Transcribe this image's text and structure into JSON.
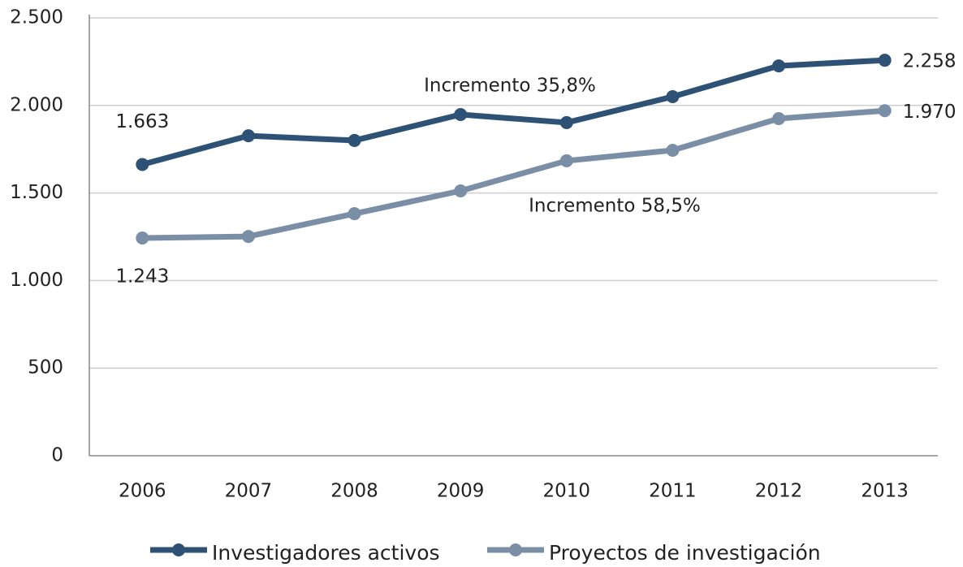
{
  "chart_data": {
    "type": "line",
    "categories": [
      "2006",
      "2007",
      "2008",
      "2009",
      "2010",
      "2011",
      "2012",
      "2013"
    ],
    "series": [
      {
        "name": "Investigadores activos",
        "color": "#2e5275",
        "values": [
          1663,
          1827,
          1800,
          1948,
          1902,
          2050,
          2226,
          2258
        ],
        "value_labels": [
          "1.663",
          null,
          null,
          null,
          null,
          null,
          null,
          "2.258"
        ]
      },
      {
        "name": "Proyectos de investigación",
        "color": "#7a8fa6",
        "values": [
          1243,
          1252,
          1382,
          1512,
          1684,
          1744,
          1925,
          1970
        ],
        "value_labels": [
          "1.243",
          null,
          null,
          null,
          null,
          null,
          null,
          "1.970"
        ]
      }
    ],
    "annotations": [
      "Incremento 35,8%",
      "Incremento 58,5%"
    ],
    "ylim": [
      0,
      2500
    ],
    "yticks": [
      0,
      500,
      {
        "value": 1000,
        "label": "1.000"
      },
      {
        "value": 1500,
        "label": "1.500"
      },
      {
        "value": 2000,
        "label": "2.000"
      },
      {
        "value": 2500,
        "label": "2.500"
      }
    ],
    "grid": true,
    "legend": "bottom"
  }
}
